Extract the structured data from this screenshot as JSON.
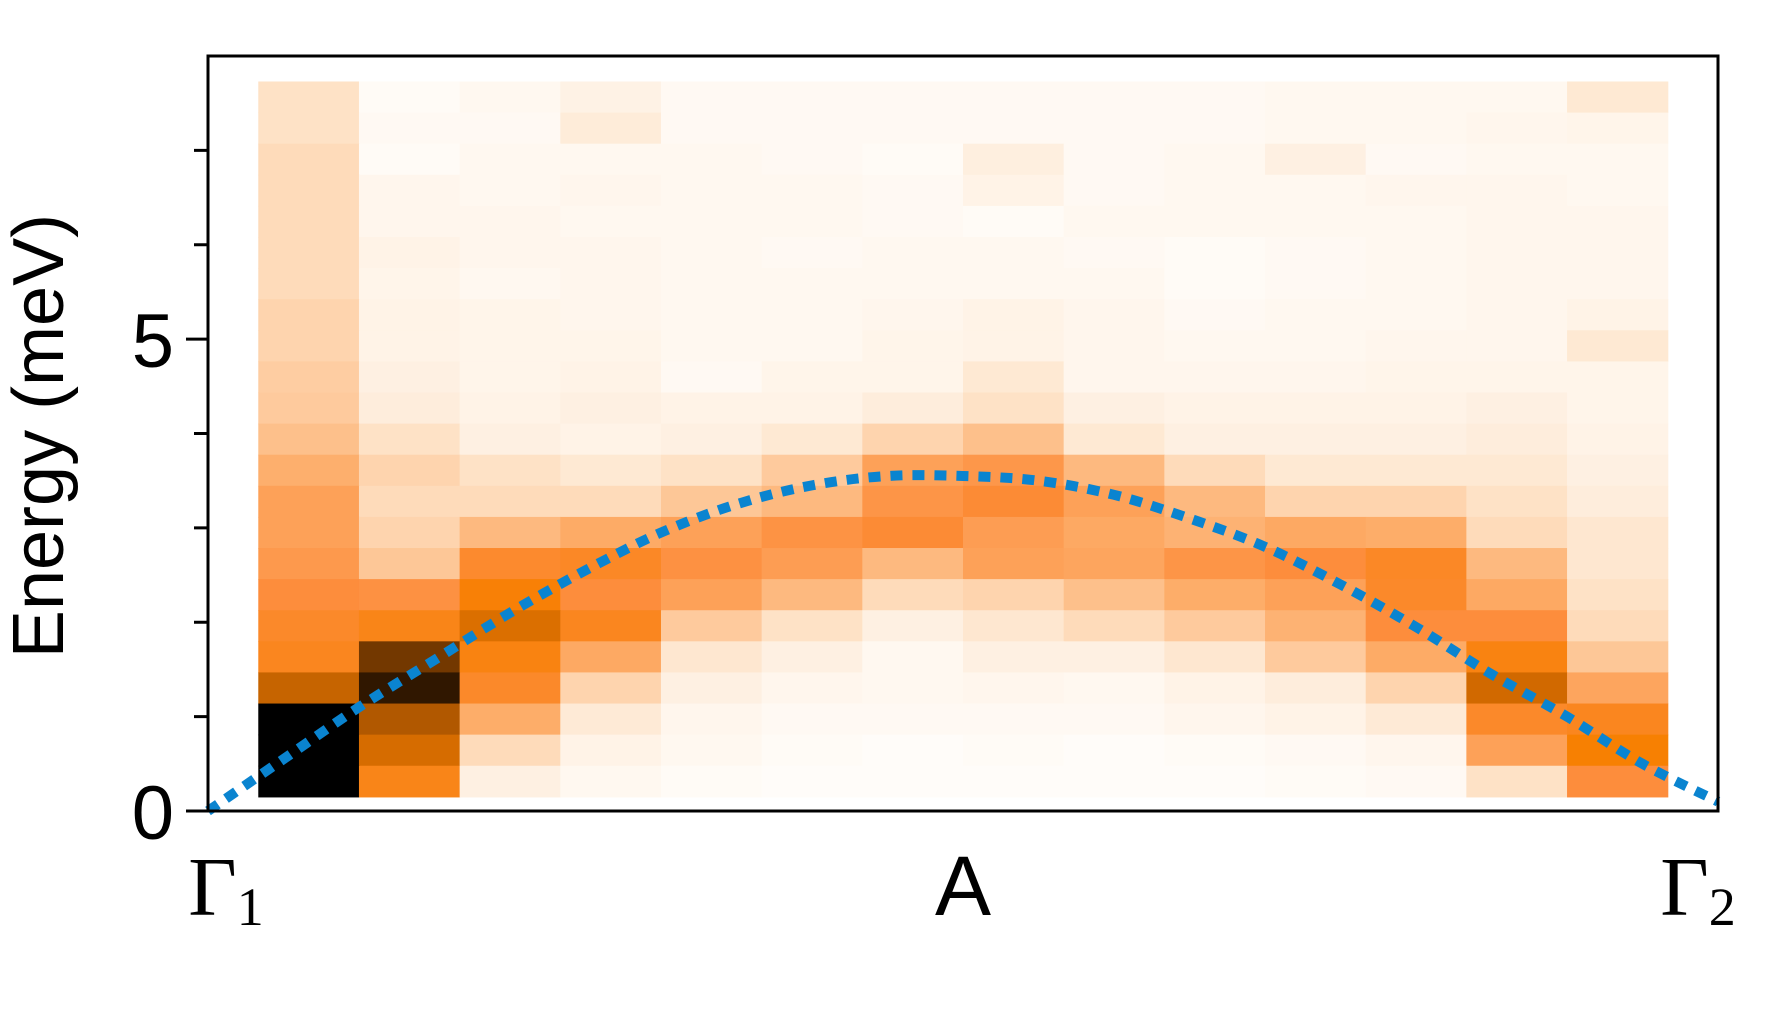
{
  "chart_data": {
    "type": "heatmap",
    "title": "",
    "xlabel": "",
    "ylabel": "Energy (meV)",
    "ylim": [
      0,
      8
    ],
    "x_ticks": [
      {
        "base": "Γ",
        "sub": "1",
        "pos": 0
      },
      {
        "base": "A",
        "sub": "",
        "pos": 0.5
      },
      {
        "base": "Γ",
        "sub": "2",
        "pos": 1
      }
    ],
    "y_major_ticks": [
      0,
      5
    ],
    "y_minor_ticks": [
      1,
      2,
      3,
      4,
      6,
      7
    ],
    "colormap": [
      "#ffffff",
      "#fee6ce",
      "#fdae6b",
      "#fd8d3c",
      "#f77f00",
      "#a04e00",
      "#000000"
    ],
    "heatmap": {
      "columns": 14,
      "rows": 23,
      "x_start": 0.0333,
      "x_end": 0.9667,
      "y_start": 0.15,
      "y_end": 7.73,
      "intensity_rows_top_to_bottom": [
        [
          0.18,
          0.03,
          0.05,
          0.09,
          0.04,
          0.04,
          0.04,
          0.04,
          0.04,
          0.04,
          0.05,
          0.05,
          0.05,
          0.15
        ],
        [
          0.18,
          0.04,
          0.04,
          0.13,
          0.04,
          0.04,
          0.04,
          0.04,
          0.04,
          0.04,
          0.05,
          0.05,
          0.06,
          0.07
        ],
        [
          0.2,
          0.03,
          0.05,
          0.05,
          0.05,
          0.04,
          0.03,
          0.11,
          0.04,
          0.05,
          0.1,
          0.04,
          0.05,
          0.05
        ],
        [
          0.2,
          0.06,
          0.05,
          0.06,
          0.05,
          0.05,
          0.04,
          0.08,
          0.04,
          0.05,
          0.05,
          0.06,
          0.06,
          0.05
        ],
        [
          0.2,
          0.06,
          0.06,
          0.05,
          0.05,
          0.05,
          0.04,
          0.03,
          0.05,
          0.05,
          0.05,
          0.05,
          0.06,
          0.06
        ],
        [
          0.2,
          0.08,
          0.06,
          0.06,
          0.05,
          0.04,
          0.05,
          0.05,
          0.04,
          0.03,
          0.04,
          0.05,
          0.06,
          0.06
        ],
        [
          0.2,
          0.07,
          0.05,
          0.06,
          0.05,
          0.05,
          0.05,
          0.05,
          0.05,
          0.03,
          0.04,
          0.05,
          0.06,
          0.06
        ],
        [
          0.22,
          0.08,
          0.07,
          0.06,
          0.05,
          0.05,
          0.06,
          0.08,
          0.06,
          0.04,
          0.05,
          0.05,
          0.06,
          0.08
        ],
        [
          0.22,
          0.08,
          0.07,
          0.07,
          0.05,
          0.05,
          0.07,
          0.08,
          0.06,
          0.05,
          0.05,
          0.06,
          0.06,
          0.15
        ],
        [
          0.24,
          0.1,
          0.07,
          0.08,
          0.04,
          0.07,
          0.07,
          0.15,
          0.06,
          0.06,
          0.06,
          0.07,
          0.07,
          0.07
        ],
        [
          0.25,
          0.12,
          0.08,
          0.1,
          0.08,
          0.08,
          0.12,
          0.18,
          0.1,
          0.08,
          0.08,
          0.08,
          0.1,
          0.07
        ],
        [
          0.28,
          0.18,
          0.1,
          0.08,
          0.1,
          0.15,
          0.22,
          0.28,
          0.15,
          0.1,
          0.1,
          0.1,
          0.12,
          0.08
        ],
        [
          0.33,
          0.22,
          0.18,
          0.15,
          0.18,
          0.25,
          0.4,
          0.45,
          0.3,
          0.2,
          0.15,
          0.15,
          0.15,
          0.1
        ],
        [
          0.4,
          0.2,
          0.2,
          0.2,
          0.26,
          0.3,
          0.46,
          0.52,
          0.4,
          0.3,
          0.22,
          0.22,
          0.18,
          0.12
        ],
        [
          0.4,
          0.22,
          0.3,
          0.35,
          0.4,
          0.47,
          0.52,
          0.42,
          0.36,
          0.32,
          0.36,
          0.34,
          0.2,
          0.16
        ],
        [
          0.44,
          0.26,
          0.54,
          0.56,
          0.48,
          0.42,
          0.3,
          0.4,
          0.38,
          0.46,
          0.5,
          0.56,
          0.3,
          0.16
        ],
        [
          0.5,
          0.48,
          0.65,
          0.5,
          0.4,
          0.3,
          0.2,
          0.22,
          0.28,
          0.34,
          0.4,
          0.55,
          0.36,
          0.18
        ],
        [
          0.55,
          0.6,
          0.72,
          0.58,
          0.25,
          0.18,
          0.1,
          0.16,
          0.2,
          0.25,
          0.32,
          0.5,
          0.5,
          0.2
        ],
        [
          0.58,
          0.88,
          0.62,
          0.36,
          0.16,
          0.1,
          0.05,
          0.1,
          0.1,
          0.16,
          0.25,
          0.35,
          0.62,
          0.26
        ],
        [
          0.76,
          0.95,
          0.55,
          0.22,
          0.1,
          0.06,
          0.05,
          0.06,
          0.05,
          0.08,
          0.12,
          0.22,
          0.74,
          0.38
        ],
        [
          1.0,
          0.8,
          0.34,
          0.14,
          0.06,
          0.04,
          0.04,
          0.04,
          0.04,
          0.06,
          0.08,
          0.14,
          0.55,
          0.58
        ],
        [
          1.0,
          0.73,
          0.2,
          0.08,
          0.05,
          0.03,
          0.02,
          0.03,
          0.02,
          0.03,
          0.04,
          0.06,
          0.4,
          0.66
        ],
        [
          1.0,
          0.6,
          0.1,
          0.05,
          0.03,
          0.02,
          0.02,
          0.02,
          0.02,
          0.02,
          0.03,
          0.04,
          0.18,
          0.5
        ]
      ]
    },
    "series": [
      {
        "type": "dispersion-curve",
        "style": "dotted",
        "color": "#0a84d0",
        "x": [
          0,
          0.05,
          0.1,
          0.15,
          0.2,
          0.25,
          0.3,
          0.35,
          0.4,
          0.45,
          0.5,
          0.55,
          0.6,
          0.65,
          0.7,
          0.75,
          0.8,
          0.85,
          0.9,
          0.95,
          1
        ],
        "y": [
          0.0,
          0.55,
          1.1,
          1.6,
          2.1,
          2.55,
          2.95,
          3.25,
          3.45,
          3.55,
          3.55,
          3.5,
          3.35,
          3.1,
          2.8,
          2.4,
          1.95,
          1.45,
          1.0,
          0.5,
          0.1
        ]
      }
    ]
  }
}
